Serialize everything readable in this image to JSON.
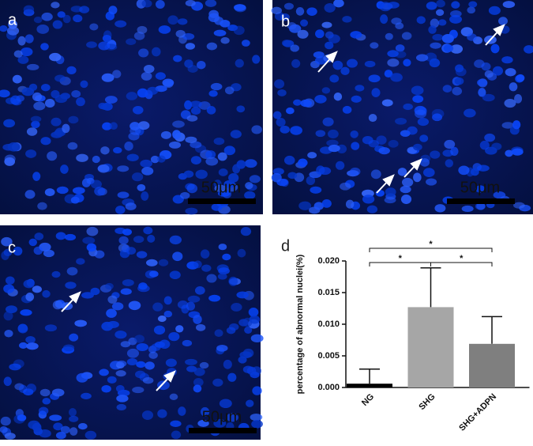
{
  "panels": [
    {
      "label": "a",
      "scale_bar": "50μm"
    },
    {
      "label": "b",
      "scale_bar": "50μm"
    },
    {
      "label": "c",
      "scale_bar": "50μm"
    }
  ],
  "chart_data": {
    "type": "bar",
    "label": "d",
    "ylabel": "percentage of abnormal nuclei(%)",
    "categories": [
      "NG",
      "SHG",
      "SHG+ADPN"
    ],
    "values": [
      0.0006,
      0.0127,
      0.0069
    ],
    "errors": [
      0.0023,
      0.0062,
      0.0043
    ],
    "colors": [
      "#000000",
      "#a6a6a6",
      "#7f7f7f"
    ],
    "ylim": [
      0,
      0.02
    ],
    "yticks": [
      {
        "value": 0,
        "label": "0.000"
      },
      {
        "value": 0.005,
        "label": "0.005"
      },
      {
        "value": 0.01,
        "label": "0.010"
      },
      {
        "value": 0.015,
        "label": "0.015"
      },
      {
        "value": 0.02,
        "label": "0.020"
      }
    ],
    "significance": [
      {
        "pair": [
          0,
          1
        ],
        "label": "*"
      },
      {
        "pair": [
          1,
          2
        ],
        "label": "*"
      },
      {
        "pair": [
          0,
          2
        ],
        "label": "*"
      }
    ]
  }
}
